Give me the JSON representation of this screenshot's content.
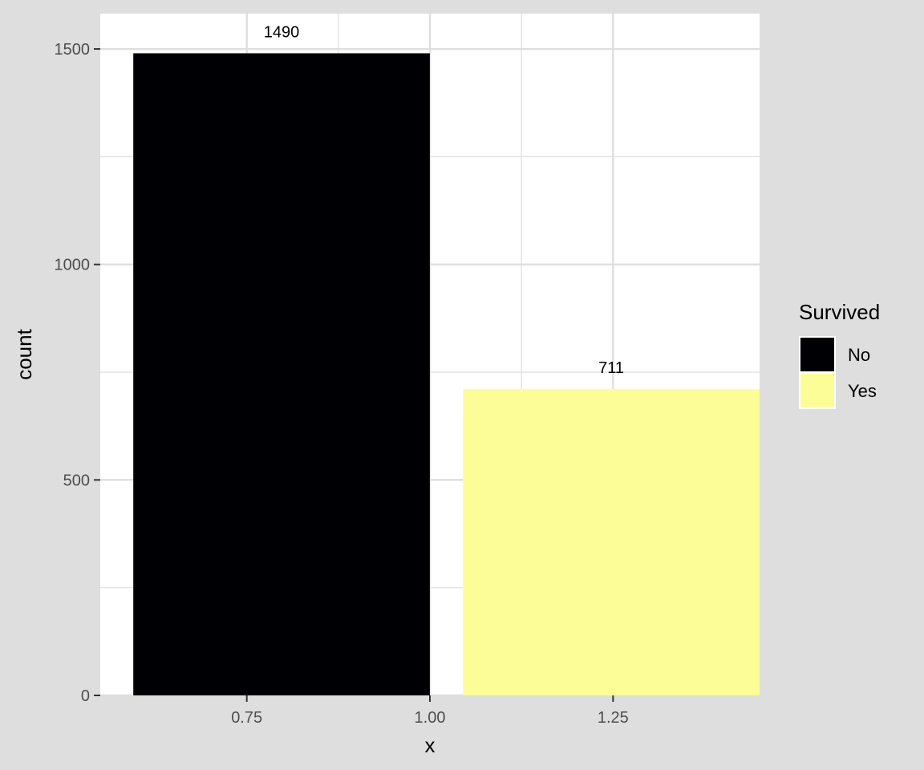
{
  "chart_data": {
    "type": "bar",
    "xlabel": "x",
    "ylabel": "count",
    "xlim": [
      0.55,
      1.45
    ],
    "ylim": [
      0,
      1582
    ],
    "x_ticks": [
      {
        "value": 0.75,
        "label": "0.75"
      },
      {
        "value": 1.0,
        "label": "1.00"
      },
      {
        "value": 1.25,
        "label": "1.25"
      }
    ],
    "y_ticks": [
      {
        "value": 0,
        "label": "0"
      },
      {
        "value": 500,
        "label": "500"
      },
      {
        "value": 1000,
        "label": "1000"
      },
      {
        "value": 1500,
        "label": "1500"
      }
    ],
    "grid": true,
    "bars": [
      {
        "category": "No",
        "x_start": 0.5951,
        "x_end": 0.9999,
        "value": 1490,
        "label": "1490",
        "color": "#000004"
      },
      {
        "category": "Yes",
        "x_start": 1.0451,
        "x_end": 1.4499,
        "value": 711,
        "label": "711",
        "color": "#fcfd97"
      }
    ],
    "legend": {
      "title": "Survived",
      "placement": "right",
      "items": [
        {
          "label": "No",
          "color": "#000004"
        },
        {
          "label": "Yes",
          "color": "#fcfd97"
        }
      ]
    },
    "colors": {
      "background": "#dedede",
      "panel": "#ffffff",
      "grid": "#dedede",
      "tick_text": "#4d4d4d"
    }
  }
}
